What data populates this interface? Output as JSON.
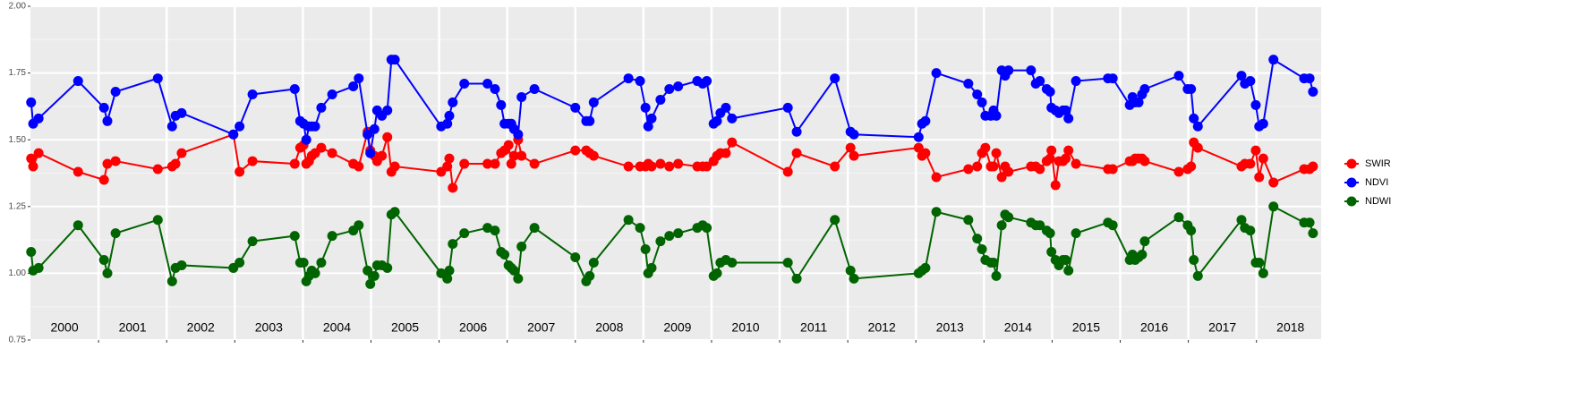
{
  "chart_data": {
    "type": "line",
    "xlim": [
      2000,
      2018.95
    ],
    "ylim": [
      0.75,
      2.0
    ],
    "yticks": [
      0.75,
      {
        "value": 1.0,
        "label": "1.00"
      },
      1.25,
      {
        "value": 1.5,
        "label": "1.50"
      },
      1.75,
      {
        "value": 2.0,
        "label": "2.00"
      }
    ],
    "yminor": [
      0.875,
      1.125,
      1.375,
      1.625,
      1.875
    ],
    "xticks": [
      2001,
      2002,
      2003,
      2004,
      2005,
      2006,
      2007,
      2008,
      2009,
      2010,
      2011,
      2012,
      2013,
      2014,
      2015,
      2016,
      2017,
      2018
    ],
    "year_labels": [
      {
        "value": 2000.5,
        "label": "2000"
      },
      {
        "value": 2001.5,
        "label": "2001"
      },
      {
        "value": 2002.5,
        "label": "2002"
      },
      {
        "value": 2003.5,
        "label": "2003"
      },
      {
        "value": 2004.5,
        "label": "2004"
      },
      {
        "value": 2005.5,
        "label": "2005"
      },
      {
        "value": 2006.5,
        "label": "2006"
      },
      {
        "value": 2007.5,
        "label": "2007"
      },
      {
        "value": 2008.5,
        "label": "2008"
      },
      {
        "value": 2009.5,
        "label": "2009"
      },
      {
        "value": 2010.5,
        "label": "2010"
      },
      {
        "value": 2011.5,
        "label": "2011"
      },
      {
        "value": 2012.5,
        "label": "2012"
      },
      {
        "value": 2013.5,
        "label": "2013"
      },
      {
        "value": 2014.5,
        "label": "2014"
      },
      {
        "value": 2015.5,
        "label": "2015"
      },
      {
        "value": 2016.5,
        "label": "2016"
      },
      {
        "value": 2017.5,
        "label": "2017"
      },
      {
        "value": 2018.5,
        "label": "2018"
      }
    ],
    "grid": true,
    "legend": "right",
    "x": [
      2000.01,
      2000.04,
      2000.12,
      2000.7,
      2001.08,
      2001.13,
      2001.25,
      2001.87,
      2002.08,
      2002.13,
      2002.22,
      2002.98,
      2003.07,
      2003.26,
      2003.88,
      2003.96,
      2004.01,
      2004.05,
      2004.09,
      2004.13,
      2004.18,
      2004.27,
      2004.43,
      2004.74,
      2004.82,
      2004.95,
      2004.99,
      2005.05,
      2005.09,
      2005.16,
      2005.24,
      2005.3,
      2005.35,
      2006.03,
      2006.12,
      2006.15,
      2006.2,
      2006.37,
      2006.71,
      2006.82,
      2006.91,
      2006.96,
      2007.02,
      2007.06,
      2007.1,
      2007.16,
      2007.21,
      2007.4,
      2008.0,
      2008.16,
      2008.21,
      2008.27,
      2008.78,
      2008.95,
      2009.03,
      2009.07,
      2009.12,
      2009.25,
      2009.38,
      2009.51,
      2009.79,
      2009.87,
      2009.93,
      2010.03,
      2010.08,
      2010.13,
      2010.21,
      2010.3,
      2011.12,
      2011.25,
      2011.81,
      2012.04,
      2012.09,
      2013.04,
      2013.09,
      2013.14,
      2013.3,
      2013.77,
      2013.9,
      2013.97,
      2014.02,
      2014.1,
      2014.14,
      2014.18,
      2014.26,
      2014.31,
      2014.36,
      2014.69,
      2014.76,
      2014.82,
      2014.92,
      2014.97,
      2014.99,
      2015.05,
      2015.1,
      2015.16,
      2015.2,
      2015.24,
      2015.35,
      2015.82,
      2015.89,
      2016.14,
      2016.18,
      2016.22,
      2016.27,
      2016.32,
      2016.36,
      2016.86,
      2016.99,
      2017.04,
      2017.08,
      2017.14,
      2017.78,
      2017.83,
      2017.91,
      2017.99,
      2018.04,
      2018.1,
      2018.25,
      2018.7,
      2018.78,
      2018.83
    ],
    "series": [
      {
        "name": "SWIR",
        "color": "#ff0000",
        "values": [
          1.43,
          1.4,
          1.45,
          1.38,
          1.35,
          1.41,
          1.42,
          1.39,
          1.4,
          1.41,
          1.45,
          1.52,
          1.38,
          1.42,
          1.41,
          1.47,
          1.48,
          1.41,
          1.42,
          1.44,
          1.45,
          1.47,
          1.45,
          1.41,
          1.4,
          1.53,
          1.46,
          1.44,
          1.42,
          1.44,
          1.51,
          1.38,
          1.4,
          1.38,
          1.4,
          1.43,
          1.32,
          1.41,
          1.41,
          1.41,
          1.45,
          1.46,
          1.48,
          1.41,
          1.44,
          1.5,
          1.44,
          1.41,
          1.46,
          1.46,
          1.45,
          1.44,
          1.4,
          1.4,
          1.4,
          1.41,
          1.4,
          1.41,
          1.4,
          1.41,
          1.4,
          1.4,
          1.4,
          1.42,
          1.44,
          1.45,
          1.45,
          1.49,
          1.38,
          1.45,
          1.4,
          1.47,
          1.44,
          1.47,
          1.44,
          1.45,
          1.36,
          1.39,
          1.4,
          1.45,
          1.47,
          1.4,
          1.4,
          1.45,
          1.36,
          1.4,
          1.38,
          1.4,
          1.4,
          1.39,
          1.42,
          1.43,
          1.46,
          1.33,
          1.42,
          1.42,
          1.43,
          1.46,
          1.41,
          1.39,
          1.39,
          1.42,
          1.42,
          1.43,
          1.43,
          1.43,
          1.42,
          1.38,
          1.39,
          1.4,
          1.49,
          1.47,
          1.4,
          1.41,
          1.41,
          1.46,
          1.36,
          1.43,
          1.34,
          1.39,
          1.39,
          1.4
        ]
      },
      {
        "name": "NDVI",
        "color": "#0000ff",
        "values": [
          1.64,
          1.56,
          1.58,
          1.72,
          1.62,
          1.57,
          1.68,
          1.73,
          1.55,
          1.59,
          1.6,
          1.52,
          1.55,
          1.67,
          1.69,
          1.57,
          1.56,
          1.5,
          1.55,
          1.55,
          1.55,
          1.62,
          1.67,
          1.7,
          1.73,
          1.52,
          1.45,
          1.54,
          1.61,
          1.59,
          1.61,
          1.8,
          1.8,
          1.55,
          1.56,
          1.59,
          1.64,
          1.71,
          1.71,
          1.69,
          1.63,
          1.56,
          1.56,
          1.56,
          1.54,
          1.52,
          1.66,
          1.69,
          1.62,
          1.57,
          1.57,
          1.64,
          1.73,
          1.72,
          1.62,
          1.55,
          1.58,
          1.65,
          1.69,
          1.7,
          1.72,
          1.71,
          1.72,
          1.56,
          1.57,
          1.6,
          1.62,
          1.58,
          1.62,
          1.53,
          1.73,
          1.53,
          1.52,
          1.51,
          1.56,
          1.57,
          1.75,
          1.71,
          1.67,
          1.64,
          1.59,
          1.59,
          1.61,
          1.59,
          1.76,
          1.74,
          1.76,
          1.76,
          1.71,
          1.72,
          1.69,
          1.68,
          1.62,
          1.61,
          1.6,
          1.61,
          1.61,
          1.58,
          1.72,
          1.73,
          1.73,
          1.63,
          1.66,
          1.64,
          1.64,
          1.67,
          1.69,
          1.74,
          1.69,
          1.69,
          1.58,
          1.55,
          1.74,
          1.71,
          1.72,
          1.63,
          1.55,
          1.56,
          1.8,
          1.73,
          1.73,
          1.68
        ]
      },
      {
        "name": "NDWI",
        "color": "#006400",
        "values": [
          1.08,
          1.01,
          1.02,
          1.18,
          1.05,
          1.0,
          1.15,
          1.2,
          0.97,
          1.02,
          1.03,
          1.02,
          1.04,
          1.12,
          1.14,
          1.04,
          1.04,
          0.97,
          0.99,
          1.01,
          1.0,
          1.04,
          1.14,
          1.16,
          1.18,
          1.01,
          0.96,
          0.99,
          1.03,
          1.03,
          1.02,
          1.22,
          1.23,
          1.0,
          0.98,
          1.01,
          1.11,
          1.15,
          1.17,
          1.16,
          1.08,
          1.07,
          1.03,
          1.02,
          1.01,
          0.98,
          1.1,
          1.17,
          1.06,
          0.97,
          0.99,
          1.04,
          1.2,
          1.17,
          1.09,
          1.0,
          1.02,
          1.12,
          1.14,
          1.15,
          1.17,
          1.18,
          1.17,
          0.99,
          1.0,
          1.04,
          1.05,
          1.04,
          1.04,
          0.98,
          1.2,
          1.01,
          0.98,
          1.0,
          1.01,
          1.02,
          1.23,
          1.2,
          1.13,
          1.09,
          1.05,
          1.04,
          1.04,
          0.99,
          1.18,
          1.22,
          1.21,
          1.19,
          1.18,
          1.18,
          1.16,
          1.15,
          1.08,
          1.05,
          1.03,
          1.05,
          1.05,
          1.01,
          1.15,
          1.19,
          1.18,
          1.05,
          1.07,
          1.05,
          1.06,
          1.07,
          1.12,
          1.21,
          1.18,
          1.16,
          1.05,
          0.99,
          1.2,
          1.17,
          1.16,
          1.04,
          1.04,
          1.0,
          1.25,
          1.19,
          1.19,
          1.15
        ]
      }
    ]
  }
}
